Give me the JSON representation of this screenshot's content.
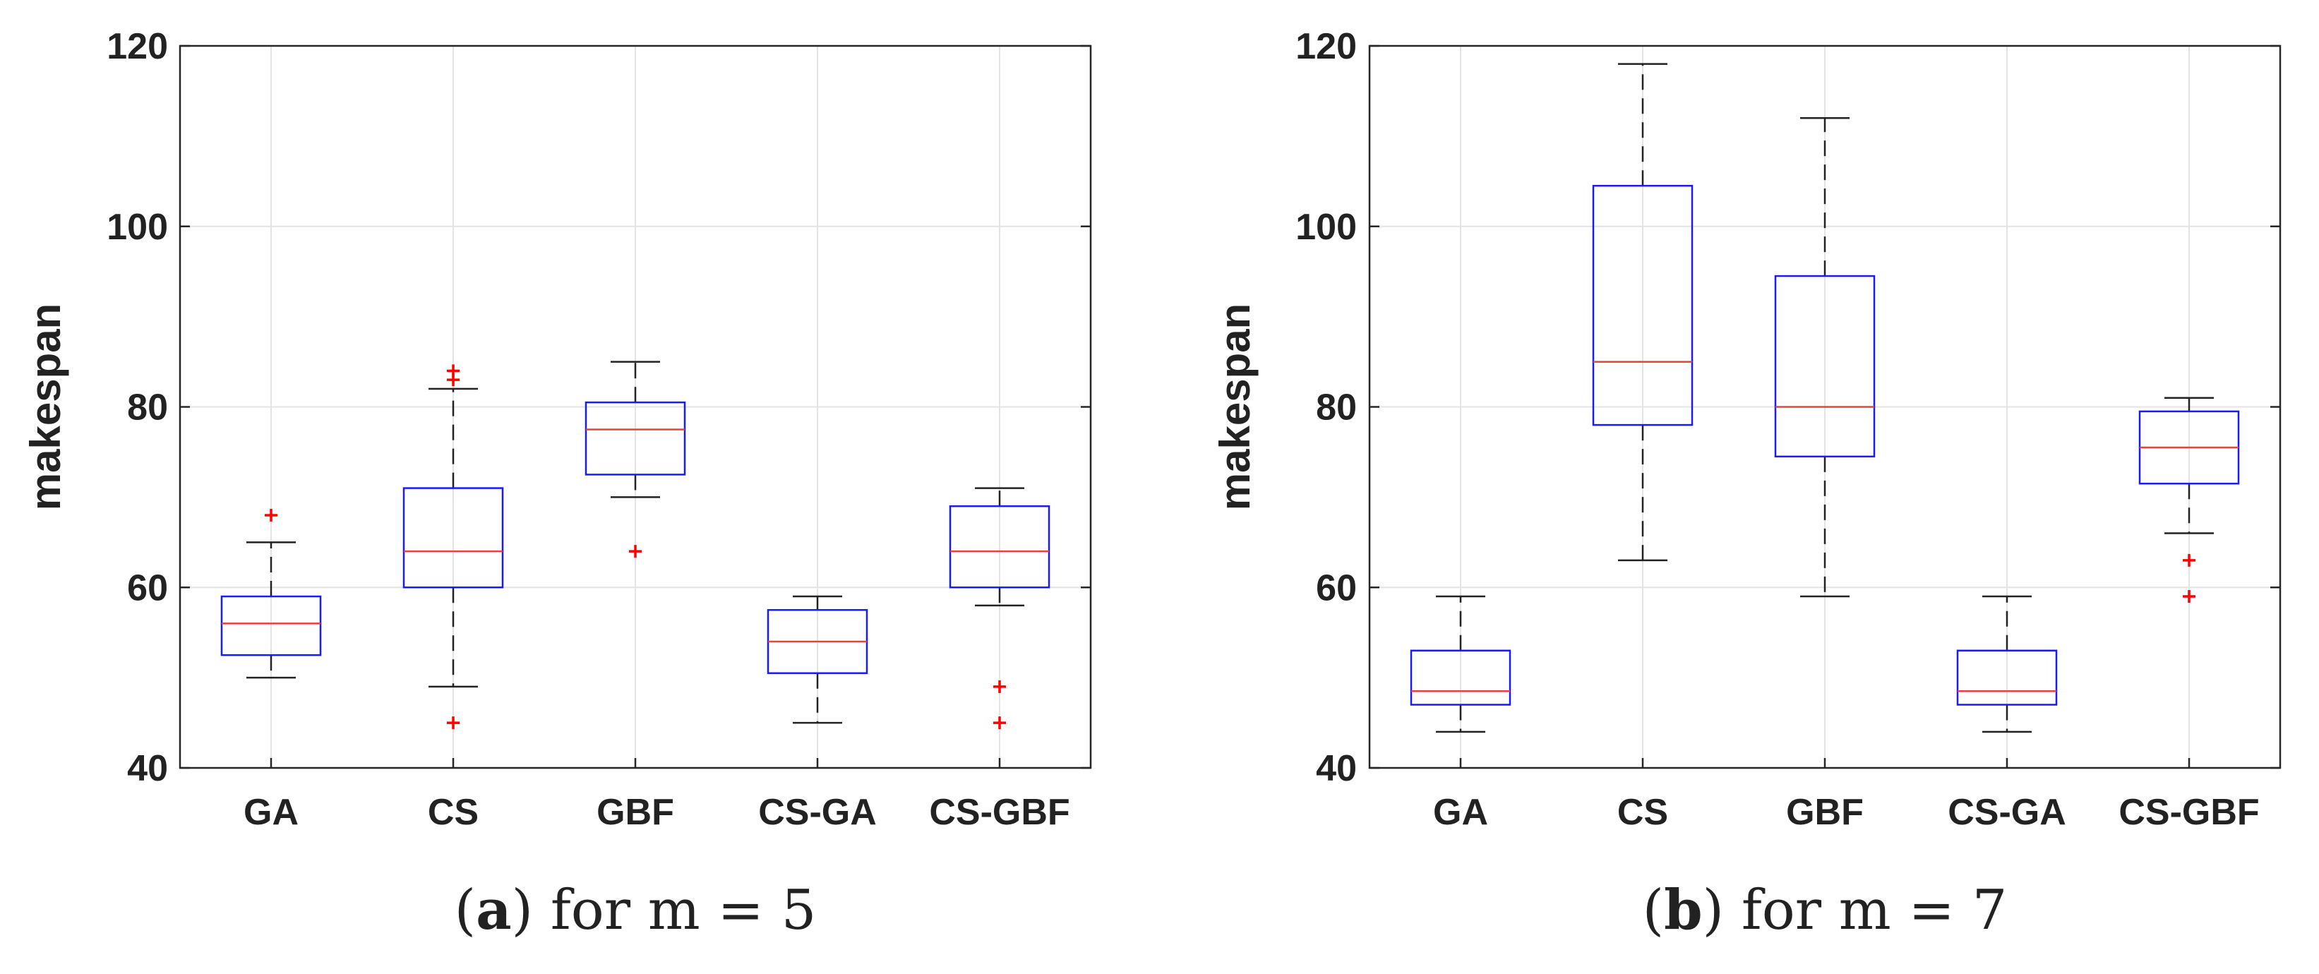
{
  "chart_data": [
    {
      "type": "box",
      "ylabel": "makespan",
      "xlabel": "",
      "ylim": [
        40,
        120
      ],
      "yticks": [
        40,
        60,
        80,
        100,
        120
      ],
      "grid": true,
      "categories": [
        "GA",
        "CS",
        "GBF",
        "CS-GA",
        "CS-GBF"
      ],
      "boxes": [
        {
          "name": "GA",
          "whisker_low": 50,
          "q1": 52.5,
          "median": 56,
          "q3": 59,
          "whisker_high": 65,
          "outliers": [
            68
          ]
        },
        {
          "name": "CS",
          "whisker_low": 49,
          "q1": 60,
          "median": 64,
          "q3": 71,
          "whisker_high": 82,
          "outliers": [
            45,
            83,
            84
          ]
        },
        {
          "name": "GBF",
          "whisker_low": 70,
          "q1": 72.5,
          "median": 77.5,
          "q3": 80.5,
          "whisker_high": 85,
          "outliers": [
            64
          ]
        },
        {
          "name": "CS-GA",
          "whisker_low": 45,
          "q1": 50.5,
          "median": 54,
          "q3": 57.5,
          "whisker_high": 59,
          "outliers": []
        },
        {
          "name": "CS-GBF",
          "whisker_low": 58,
          "q1": 60,
          "median": 64,
          "q3": 69,
          "whisker_high": 71,
          "outliers": [
            45,
            49
          ]
        }
      ],
      "caption": {
        "letter": "a",
        "text": "for m = 5"
      }
    },
    {
      "type": "box",
      "ylabel": "makespan",
      "xlabel": "",
      "ylim": [
        40,
        120
      ],
      "yticks": [
        40,
        60,
        80,
        100,
        120
      ],
      "grid": true,
      "categories": [
        "GA",
        "CS",
        "GBF",
        "CS-GA",
        "CS-GBF"
      ],
      "boxes": [
        {
          "name": "GA",
          "whisker_low": 44,
          "q1": 47,
          "median": 48.5,
          "q3": 53,
          "whisker_high": 59,
          "outliers": []
        },
        {
          "name": "CS",
          "whisker_low": 63,
          "q1": 78,
          "median": 85,
          "q3": 104.5,
          "whisker_high": 118,
          "outliers": []
        },
        {
          "name": "GBF",
          "whisker_low": 59,
          "q1": 74.5,
          "median": 80,
          "q3": 94.5,
          "whisker_high": 112,
          "outliers": []
        },
        {
          "name": "CS-GA",
          "whisker_low": 44,
          "q1": 47,
          "median": 48.5,
          "q3": 53,
          "whisker_high": 59,
          "outliers": []
        },
        {
          "name": "CS-GBF",
          "whisker_low": 66,
          "q1": 71.5,
          "median": 75.5,
          "q3": 79.5,
          "whisker_high": 81,
          "outliers": [
            59,
            63
          ]
        }
      ],
      "caption": {
        "letter": "b",
        "text": "for m = 7"
      }
    }
  ],
  "colors": {
    "box": "#1a1aff",
    "median": "#e8403c",
    "whisker": "#222222",
    "outlier": "#ff0000",
    "grid": "#e4e4e4",
    "axis": "#262626",
    "text": "#222222"
  }
}
